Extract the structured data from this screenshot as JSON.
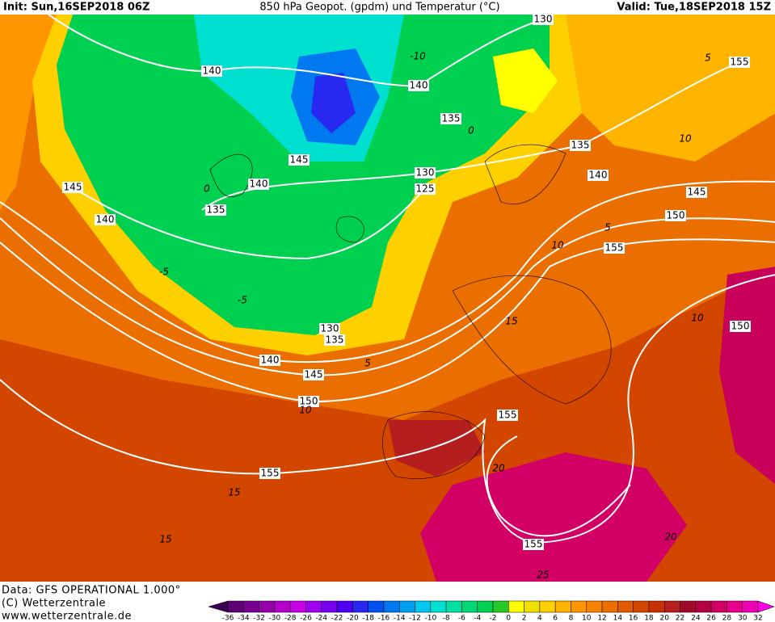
{
  "header": {
    "init": "Init: Sun,16SEP2018 06Z",
    "title": "850 hPa Geopot. (gpdm) und Temperatur (°C)",
    "valid": "Valid: Tue,18SEP2018 15Z"
  },
  "map": {
    "geopotential_labels": [
      "130",
      "155",
      "140",
      "140",
      "135",
      "135",
      "145",
      "130",
      "140",
      "140",
      "125",
      "145",
      "145",
      "135",
      "150",
      "140",
      "155",
      "150",
      "130",
      "135",
      "140",
      "145",
      "150",
      "155",
      "155",
      "155"
    ],
    "temperature_labels": [
      "-10",
      "0",
      "5",
      "10",
      "-5",
      "-5",
      "0",
      "10",
      "5",
      "15",
      "10",
      "15",
      "15",
      "20",
      "20",
      "25",
      "5",
      "10"
    ]
  },
  "colorbar": {
    "ticks": [
      -36,
      -34,
      -32,
      -30,
      -28,
      -26,
      -24,
      -22,
      -20,
      -18,
      -16,
      -14,
      -12,
      -10,
      -8,
      -6,
      -4,
      -2,
      0,
      2,
      4,
      6,
      8,
      10,
      12,
      14,
      16,
      18,
      20,
      22,
      24,
      26,
      28,
      30,
      32
    ],
    "colors": [
      "#3c0050",
      "#5a0070",
      "#780090",
      "#9600aa",
      "#b400c8",
      "#c800e6",
      "#a000f0",
      "#7800f0",
      "#5000f0",
      "#2828f0",
      "#0050f0",
      "#0078f0",
      "#00a0f0",
      "#00c8f0",
      "#00e0d0",
      "#00e0a0",
      "#00d878",
      "#00d050",
      "#28c828",
      "#ffff00",
      "#f0e000",
      "#ffd000",
      "#ffb400",
      "#ff9600",
      "#f58200",
      "#eb6e00",
      "#e15a00",
      "#d24600",
      "#c83200",
      "#b41e1e",
      "#a00a28",
      "#b40040",
      "#d20064",
      "#e6008c",
      "#f000b4",
      "#ff00e6"
    ]
  },
  "footer": {
    "source": "Data: GFS OPERATIONAL 1.000°",
    "copyright": "(C) Wetterzentrale",
    "url": "www.wetterzentrale.de"
  }
}
